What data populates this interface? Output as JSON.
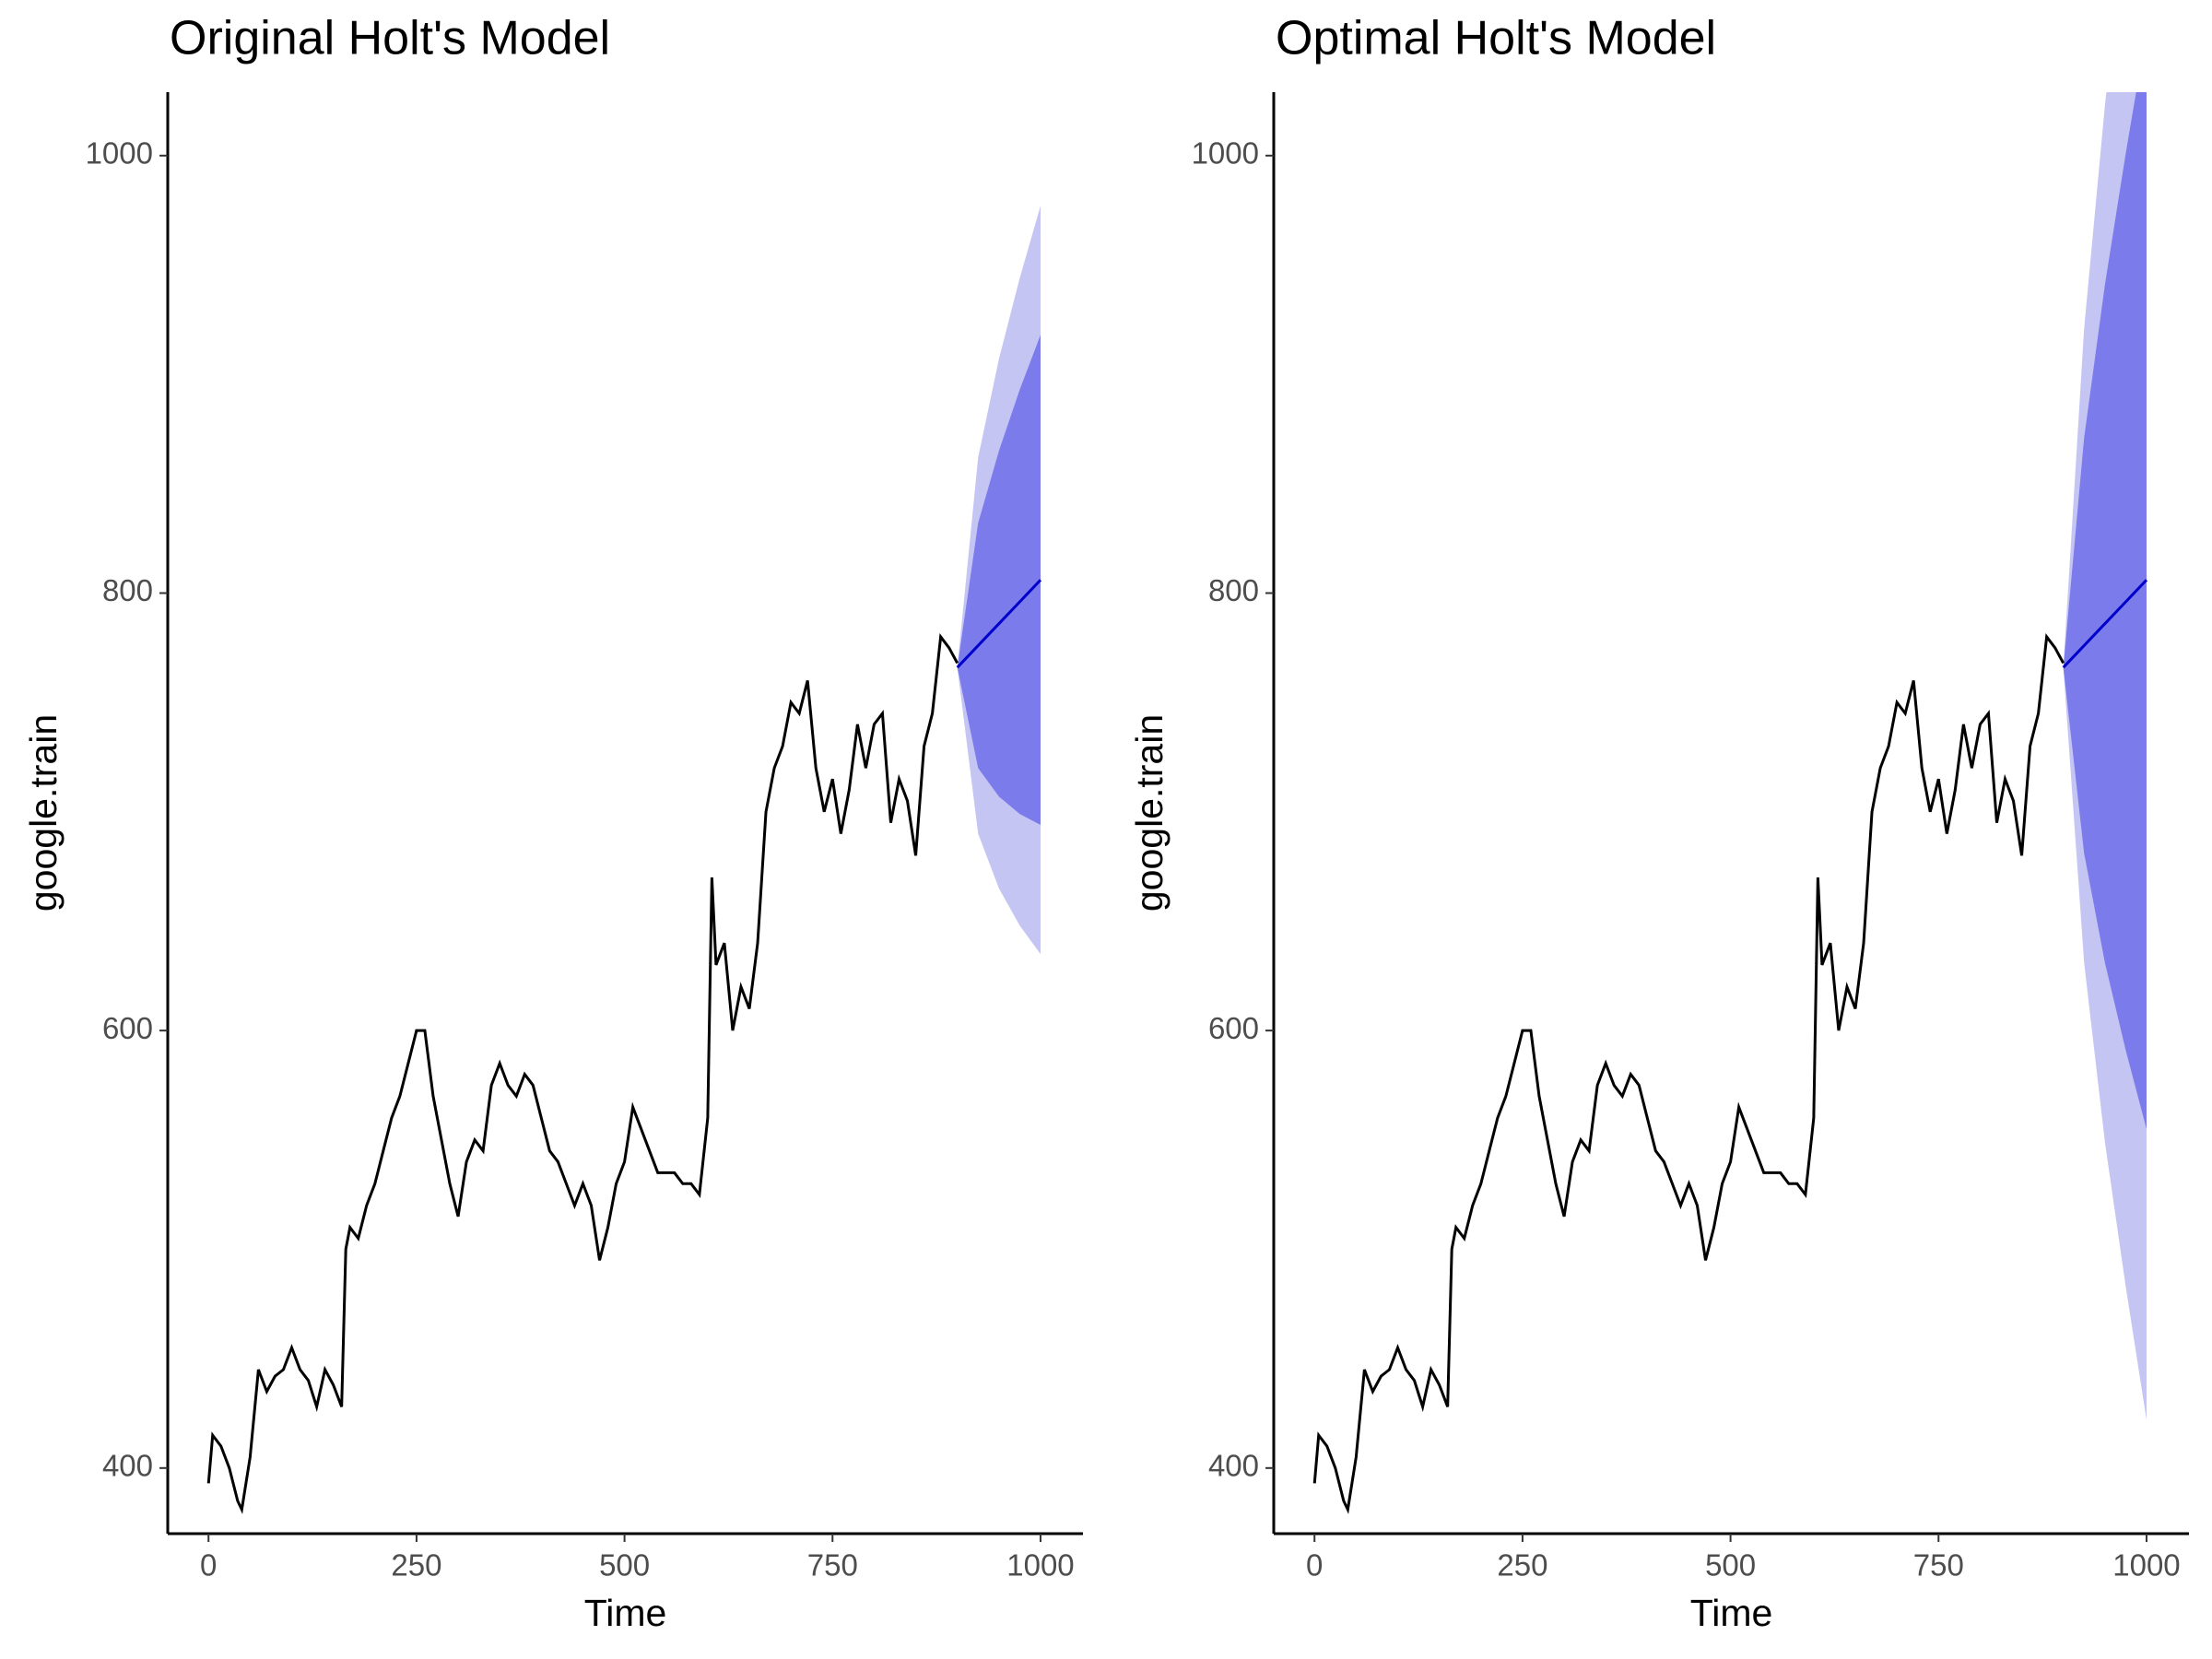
{
  "chart_data": [
    {
      "type": "line",
      "title": "Original Holt's Model",
      "x_label": "Time",
      "y_label": "google.train",
      "xlim": [
        -49,
        1051
      ],
      "ylim": [
        370,
        1029
      ],
      "xticks": [
        0,
        250,
        500,
        750,
        1000
      ],
      "yticks": [
        400,
        600,
        800,
        1000
      ],
      "grid": false,
      "color": "#000000",
      "x": [
        0,
        5,
        15,
        25,
        35,
        40,
        50,
        60,
        70,
        80,
        90,
        100,
        110,
        120,
        130,
        140,
        150,
        160,
        165,
        170,
        180,
        190,
        200,
        210,
        220,
        230,
        240,
        250,
        260,
        270,
        280,
        290,
        300,
        310,
        320,
        330,
        340,
        350,
        360,
        370,
        380,
        390,
        400,
        410,
        420,
        430,
        440,
        450,
        460,
        470,
        480,
        490,
        500,
        510,
        520,
        530,
        540,
        550,
        560,
        570,
        580,
        590,
        600,
        605,
        610,
        620,
        630,
        640,
        650,
        660,
        670,
        680,
        690,
        700,
        710,
        720,
        730,
        740,
        750,
        760,
        770,
        780,
        790,
        800,
        810,
        820,
        830,
        840,
        850,
        860,
        870,
        880,
        890,
        900
      ],
      "values": [
        393,
        415,
        410,
        400,
        385,
        381,
        405,
        445,
        435,
        442,
        445,
        455,
        445,
        440,
        428,
        445,
        438,
        428,
        500,
        510,
        505,
        520,
        530,
        545,
        560,
        570,
        585,
        600,
        600,
        570,
        550,
        530,
        515,
        540,
        550,
        545,
        575,
        585,
        575,
        570,
        580,
        575,
        560,
        545,
        540,
        530,
        520,
        530,
        520,
        495,
        510,
        530,
        540,
        565,
        555,
        545,
        535,
        535,
        535,
        530,
        530,
        525,
        560,
        670,
        630,
        640,
        600,
        620,
        610,
        640,
        700,
        720,
        730,
        750,
        745,
        760,
        720,
        700,
        715,
        690,
        710,
        740,
        720,
        740,
        745,
        695,
        715,
        705,
        680,
        730,
        745,
        780,
        775,
        768
      ],
      "forecast_x": [
        900,
        925,
        950,
        975,
        1000
      ],
      "forecast": {
        "color": "#0000cc",
        "values": [
          766,
          776,
          786,
          796,
          806
        ]
      },
      "band_80": {
        "color": "#7b7bec",
        "lower": [
          766,
          720,
          707,
          699,
          694
        ],
        "upper": [
          766,
          832,
          865,
          893,
          918
        ]
      },
      "band_95": {
        "color": "#c5c5f4",
        "lower": [
          766,
          690,
          665,
          648,
          635
        ],
        "upper": [
          766,
          862,
          907,
          944,
          977
        ]
      }
    },
    {
      "type": "line",
      "title": "Optimal Holt's Model",
      "x_label": "Time",
      "y_label": "google.train",
      "xlim": [
        -49,
        1051
      ],
      "ylim": [
        370,
        1029
      ],
      "xticks": [
        0,
        250,
        500,
        750,
        1000
      ],
      "yticks": [
        400,
        600,
        800,
        1000
      ],
      "grid": false,
      "color": "#000000",
      "x": [
        0,
        5,
        15,
        25,
        35,
        40,
        50,
        60,
        70,
        80,
        90,
        100,
        110,
        120,
        130,
        140,
        150,
        160,
        165,
        170,
        180,
        190,
        200,
        210,
        220,
        230,
        240,
        250,
        260,
        270,
        280,
        290,
        300,
        310,
        320,
        330,
        340,
        350,
        360,
        370,
        380,
        390,
        400,
        410,
        420,
        430,
        440,
        450,
        460,
        470,
        480,
        490,
        500,
        510,
        520,
        530,
        540,
        550,
        560,
        570,
        580,
        590,
        600,
        605,
        610,
        620,
        630,
        640,
        650,
        660,
        670,
        680,
        690,
        700,
        710,
        720,
        730,
        740,
        750,
        760,
        770,
        780,
        790,
        800,
        810,
        820,
        830,
        840,
        850,
        860,
        870,
        880,
        890,
        900
      ],
      "values": [
        393,
        415,
        410,
        400,
        385,
        381,
        405,
        445,
        435,
        442,
        445,
        455,
        445,
        440,
        428,
        445,
        438,
        428,
        500,
        510,
        505,
        520,
        530,
        545,
        560,
        570,
        585,
        600,
        600,
        570,
        550,
        530,
        515,
        540,
        550,
        545,
        575,
        585,
        575,
        570,
        580,
        575,
        560,
        545,
        540,
        530,
        520,
        530,
        520,
        495,
        510,
        530,
        540,
        565,
        555,
        545,
        535,
        535,
        535,
        530,
        530,
        525,
        560,
        670,
        630,
        640,
        600,
        620,
        610,
        640,
        700,
        720,
        730,
        750,
        745,
        760,
        720,
        700,
        715,
        690,
        710,
        740,
        720,
        740,
        745,
        695,
        715,
        705,
        680,
        730,
        745,
        780,
        775,
        768
      ],
      "forecast_x": [
        900,
        925,
        950,
        975,
        1000
      ],
      "forecast": {
        "color": "#0000cc",
        "values": [
          766,
          776,
          786,
          796,
          806
        ]
      },
      "band_80": {
        "color": "#7b7bec",
        "lower": [
          766,
          681,
          631,
          591,
          555
        ],
        "upper": [
          766,
          871,
          941,
          1001,
          1057
        ]
      },
      "band_95": {
        "color": "#c5c5f4",
        "lower": [
          766,
          631,
          549,
          483,
          422
        ],
        "upper": [
          766,
          921,
          1023,
          1109,
          1190
        ]
      }
    }
  ]
}
